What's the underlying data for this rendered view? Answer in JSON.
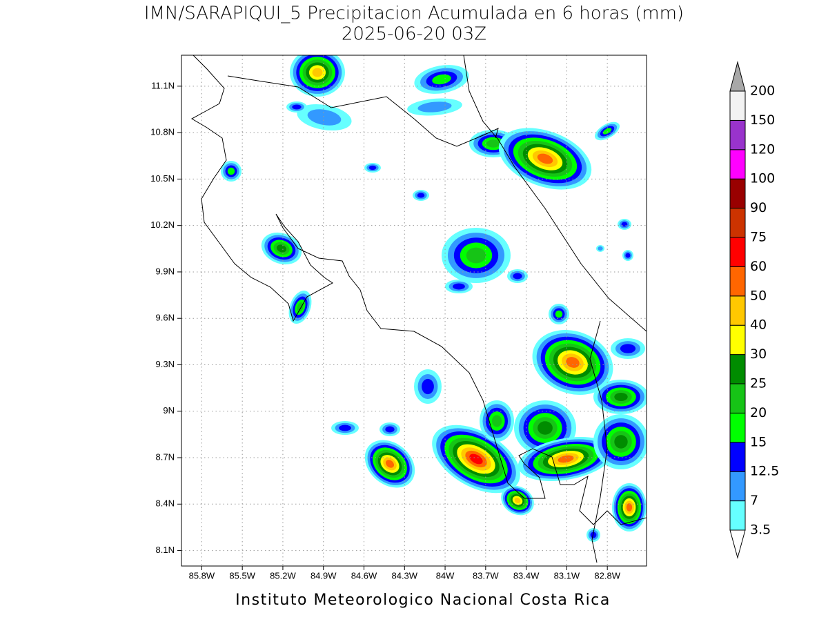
{
  "title": "IMN/SARAPIQUI_5 Precipitacion Acumulada en 6 horas (mm)",
  "subtitle": "2025-06-20 03Z",
  "map": {
    "lon_range": [
      -85.95,
      -82.51
    ],
    "lat_range": [
      8.0,
      11.3
    ],
    "grid": true,
    "lon_ticks": [
      {
        "value": -85.8,
        "label": "85.8W"
      },
      {
        "value": -85.5,
        "label": "85.5W"
      },
      {
        "value": -85.2,
        "label": "85.2W"
      },
      {
        "value": -84.9,
        "label": "84.9W"
      },
      {
        "value": -84.6,
        "label": "84.6W"
      },
      {
        "value": -84.3,
        "label": "84.3W"
      },
      {
        "value": -84.0,
        "label": "84W"
      },
      {
        "value": -83.7,
        "label": "83.7W"
      },
      {
        "value": -83.4,
        "label": "83.4W"
      },
      {
        "value": -83.1,
        "label": "83.1W"
      },
      {
        "value": -82.8,
        "label": "82.8W"
      }
    ],
    "lat_ticks": [
      {
        "value": 11.1,
        "label": "11.1N"
      },
      {
        "value": 10.8,
        "label": "10.8N"
      },
      {
        "value": 10.5,
        "label": "10.5N"
      },
      {
        "value": 10.2,
        "label": "10.2N"
      },
      {
        "value": 9.9,
        "label": "9.9N"
      },
      {
        "value": 9.6,
        "label": "9.6N"
      },
      {
        "value": 9.3,
        "label": "9.3N"
      },
      {
        "value": 9.0,
        "label": "9N"
      },
      {
        "value": 8.7,
        "label": "8.7N"
      },
      {
        "value": 8.4,
        "label": "8.4N"
      },
      {
        "value": 8.1,
        "label": "8.1N"
      }
    ]
  },
  "colorbar": {
    "levels": [
      3.5,
      7,
      12.5,
      15,
      20,
      25,
      30,
      40,
      50,
      60,
      75,
      90,
      100,
      120,
      150,
      200
    ],
    "colors": [
      "#66ffff",
      "#3399ff",
      "#0000ff",
      "#00ff00",
      "#16c416",
      "#008c00",
      "#ffff00",
      "#ffc800",
      "#ff6600",
      "#ff0000",
      "#cc3300",
      "#990000",
      "#ff00ff",
      "#9933cc",
      "#f2f2f2"
    ],
    "under_color": "#ffffff",
    "over_color": "#a8a8a8"
  },
  "footer": "Instituto Meteorologico Nacional Costa Rica"
}
